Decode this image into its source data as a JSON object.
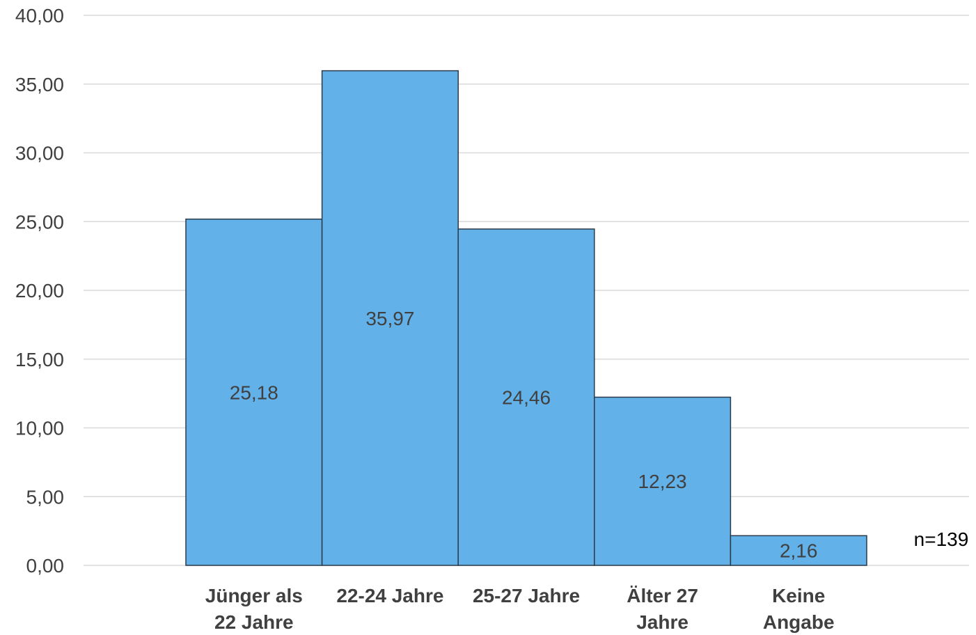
{
  "chart_data": {
    "type": "bar",
    "categories": [
      [
        "Jünger als",
        "22 Jahre"
      ],
      [
        "22-24 Jahre"
      ],
      [
        "25-27 Jahre"
      ],
      [
        "Älter 27",
        "Jahre"
      ],
      [
        "Keine",
        "Angabe"
      ]
    ],
    "values": [
      25.18,
      35.97,
      24.46,
      12.23,
      2.16
    ],
    "data_labels": [
      "25,18",
      "35,97",
      "24,46",
      "12,23",
      "2,16"
    ],
    "y_ticks": [
      "0,00",
      "5,00",
      "10,00",
      "15,00",
      "20,00",
      "25,00",
      "30,00",
      "35,00",
      "40,00"
    ],
    "ylim": [
      0,
      40
    ],
    "grid": true,
    "bar_color": "#62b1e8",
    "annotation": "n=139"
  }
}
